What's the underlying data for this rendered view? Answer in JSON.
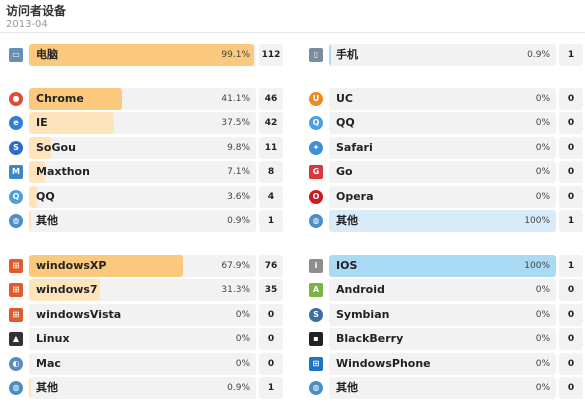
{
  "header": {
    "title": "访问者设备",
    "subtitle": "2013-04"
  },
  "colors": {
    "orange": "#fbc97d",
    "light_orange": "#fde4bd",
    "blue": "#a9dbf4",
    "pale_blue": "#d8ebf8",
    "track": "#f2f2f2"
  },
  "device_left": {
    "icon": "monitor-icon",
    "label": "电脑",
    "pct": "99.1%",
    "fraction": 0.991,
    "count": "112"
  },
  "device_right": {
    "icon": "phone-icon",
    "label": "手机",
    "pct": "0.9%",
    "fraction": 0.009,
    "count": "1"
  },
  "browsers_pc": [
    {
      "icon": "chrome-icon",
      "label": "Chrome",
      "pct": "41.1%",
      "fraction": 0.411,
      "count": "46"
    },
    {
      "icon": "ie-icon",
      "label": "IE",
      "pct": "37.5%",
      "fraction": 0.375,
      "count": "42"
    },
    {
      "icon": "sogou-icon",
      "label": "SoGou",
      "pct": "9.8%",
      "fraction": 0.098,
      "count": "11"
    },
    {
      "icon": "maxthon-icon",
      "label": "Maxthon",
      "pct": "7.1%",
      "fraction": 0.071,
      "count": "8"
    },
    {
      "icon": "qq-icon",
      "label": "QQ",
      "pct": "3.6%",
      "fraction": 0.036,
      "count": "4"
    },
    {
      "icon": "globe-icon",
      "label": "其他",
      "pct": "0.9%",
      "fraction": 0.009,
      "count": "1"
    }
  ],
  "browsers_mobile": [
    {
      "icon": "uc-icon",
      "label": "UC",
      "pct": "0%",
      "fraction": 0,
      "count": "0"
    },
    {
      "icon": "qq-icon",
      "label": "QQ",
      "pct": "0%",
      "fraction": 0,
      "count": "0"
    },
    {
      "icon": "safari-icon",
      "label": "Safari",
      "pct": "0%",
      "fraction": 0,
      "count": "0"
    },
    {
      "icon": "go-icon",
      "label": "Go",
      "pct": "0%",
      "fraction": 0,
      "count": "0"
    },
    {
      "icon": "opera-icon",
      "label": "Opera",
      "pct": "0%",
      "fraction": 0,
      "count": "0"
    },
    {
      "icon": "globe-icon",
      "label": "其他",
      "pct": "100%",
      "fraction": 1,
      "count": "1"
    }
  ],
  "os_pc": [
    {
      "icon": "windows-icon",
      "label": "windowsXP",
      "pct": "67.9%",
      "fraction": 0.679,
      "count": "76"
    },
    {
      "icon": "windows-icon",
      "label": "windows7",
      "pct": "31.3%",
      "fraction": 0.313,
      "count": "35"
    },
    {
      "icon": "windows-icon",
      "label": "windowsVista",
      "pct": "0%",
      "fraction": 0,
      "count": "0"
    },
    {
      "icon": "linux-icon",
      "label": "Linux",
      "pct": "0%",
      "fraction": 0,
      "count": "0"
    },
    {
      "icon": "mac-icon",
      "label": "Mac",
      "pct": "0%",
      "fraction": 0,
      "count": "0"
    },
    {
      "icon": "globe-icon",
      "label": "其他",
      "pct": "0.9%",
      "fraction": 0.009,
      "count": "1"
    }
  ],
  "os_mobile": [
    {
      "icon": "ios-icon",
      "label": "IOS",
      "pct": "100%",
      "fraction": 1,
      "count": "1"
    },
    {
      "icon": "android-icon",
      "label": "Android",
      "pct": "0%",
      "fraction": 0,
      "count": "0"
    },
    {
      "icon": "symbian-icon",
      "label": "Symbian",
      "pct": "0%",
      "fraction": 0,
      "count": "0"
    },
    {
      "icon": "blackberry-icon",
      "label": "BlackBerry",
      "pct": "0%",
      "fraction": 0,
      "count": "0"
    },
    {
      "icon": "windowsphone-icon",
      "label": "WindowsPhone",
      "pct": "0%",
      "fraction": 0,
      "count": "0"
    },
    {
      "icon": "globe-icon",
      "label": "其他",
      "pct": "0%",
      "fraction": 0,
      "count": "0"
    }
  ]
}
